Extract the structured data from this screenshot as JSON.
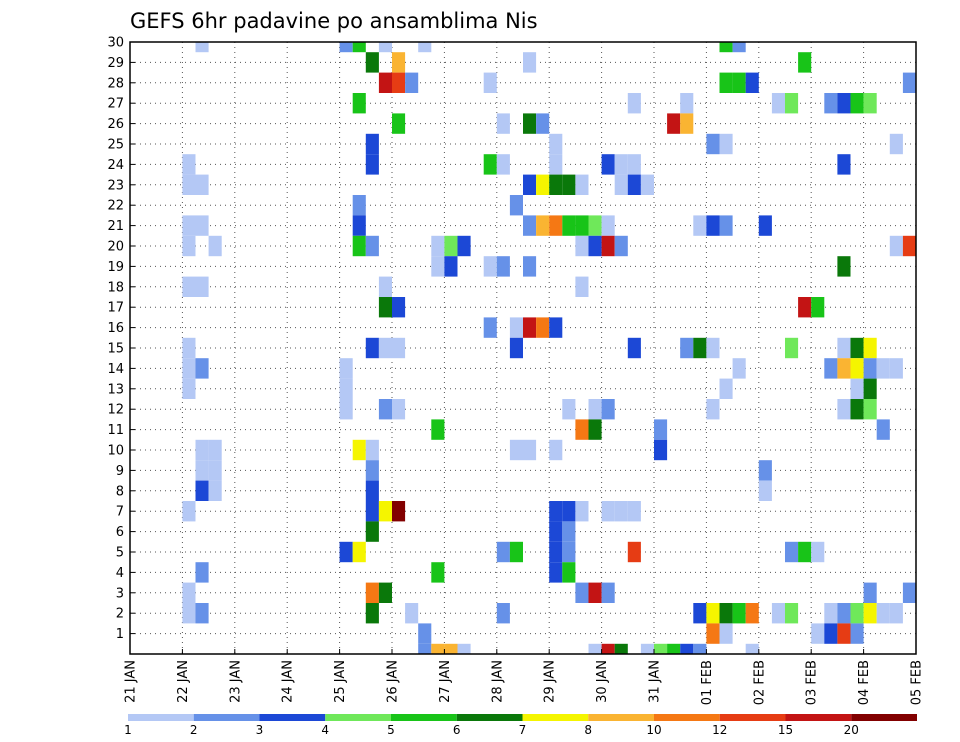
{
  "chart_data": {
    "type": "heatmap",
    "title": "GEFS 6hr padavine po ansamblima Nis",
    "xlabel": "",
    "ylabel": "",
    "x_ticks": [
      "21 JAN",
      "22 JAN",
      "23 JAN",
      "24 JAN",
      "25 JAN",
      "26 JAN",
      "27 JAN",
      "28 JAN",
      "29 JAN",
      "30 JAN",
      "31 JAN",
      "01 FEB",
      "02 FEB",
      "03 FEB",
      "04 FEB",
      "05 FEB"
    ],
    "y_ticks": [
      "1",
      "2",
      "3",
      "4",
      "5",
      "6",
      "7",
      "8",
      "9",
      "10",
      "11",
      "12",
      "13",
      "14",
      "15",
      "16",
      "17",
      "18",
      "19",
      "20",
      "21",
      "22",
      "23",
      "24",
      "25",
      "26",
      "27",
      "28",
      "29",
      "30"
    ],
    "x_range_steps": [
      0,
      60
    ],
    "y_range": [
      0,
      30
    ],
    "steps_per_day": 4,
    "colorbar": {
      "labels": [
        "1",
        "2",
        "3",
        "4",
        "5",
        "6",
        "7",
        "8",
        "10",
        "12",
        "15",
        "20"
      ],
      "colors": [
        "#b4c8f5",
        "#6691e8",
        "#1c48d6",
        "#6fe85a",
        "#18c418",
        "#0a780a",
        "#f5f500",
        "#fab432",
        "#f57814",
        "#e63c14",
        "#c31414",
        "#820000"
      ]
    },
    "cells": [
      [
        5,
        30,
        0
      ],
      [
        16,
        30,
        1
      ],
      [
        17,
        30,
        4
      ],
      [
        19,
        30,
        0
      ],
      [
        22,
        30,
        0
      ],
      [
        45,
        30,
        4
      ],
      [
        46,
        30,
        1
      ],
      [
        18,
        29,
        5
      ],
      [
        20,
        29,
        7
      ],
      [
        30,
        29,
        0
      ],
      [
        51,
        29,
        4
      ],
      [
        19,
        28,
        10
      ],
      [
        20,
        28,
        9
      ],
      [
        21,
        28,
        1
      ],
      [
        27,
        28,
        0
      ],
      [
        45,
        28,
        4
      ],
      [
        46,
        28,
        4
      ],
      [
        47,
        28,
        2
      ],
      [
        59,
        28,
        1
      ],
      [
        17,
        27,
        4
      ],
      [
        38,
        27,
        0
      ],
      [
        42,
        27,
        0
      ],
      [
        49,
        27,
        0
      ],
      [
        50,
        27,
        3
      ],
      [
        53,
        27,
        1
      ],
      [
        54,
        27,
        2
      ],
      [
        55,
        27,
        4
      ],
      [
        56,
        27,
        3
      ],
      [
        20,
        26,
        4
      ],
      [
        28,
        26,
        0
      ],
      [
        30,
        26,
        5
      ],
      [
        31,
        26,
        1
      ],
      [
        41,
        26,
        10
      ],
      [
        42,
        26,
        7
      ],
      [
        18,
        25,
        2
      ],
      [
        32,
        25,
        0
      ],
      [
        44,
        25,
        1
      ],
      [
        45,
        25,
        0
      ],
      [
        58,
        25,
        0
      ],
      [
        4,
        24,
        0
      ],
      [
        18,
        24,
        2
      ],
      [
        27,
        24,
        4
      ],
      [
        28,
        24,
        0
      ],
      [
        32,
        24,
        0
      ],
      [
        36,
        24,
        2
      ],
      [
        37,
        24,
        0
      ],
      [
        38,
        24,
        0
      ],
      [
        54,
        24,
        2
      ],
      [
        4,
        23,
        0
      ],
      [
        5,
        23,
        0
      ],
      [
        30,
        23,
        2
      ],
      [
        31,
        23,
        6
      ],
      [
        32,
        23,
        5
      ],
      [
        33,
        23,
        5
      ],
      [
        34,
        23,
        0
      ],
      [
        37,
        23,
        0
      ],
      [
        38,
        23,
        2
      ],
      [
        39,
        23,
        0
      ],
      [
        17,
        22,
        1
      ],
      [
        29,
        22,
        1
      ],
      [
        4,
        21,
        0
      ],
      [
        5,
        21,
        0
      ],
      [
        17,
        21,
        2
      ],
      [
        30,
        21,
        1
      ],
      [
        31,
        21,
        7
      ],
      [
        32,
        21,
        8
      ],
      [
        33,
        21,
        4
      ],
      [
        34,
        21,
        4
      ],
      [
        35,
        21,
        3
      ],
      [
        36,
        21,
        0
      ],
      [
        43,
        21,
        0
      ],
      [
        44,
        21,
        2
      ],
      [
        45,
        21,
        1
      ],
      [
        48,
        21,
        2
      ],
      [
        4,
        20,
        0
      ],
      [
        6,
        20,
        0
      ],
      [
        17,
        20,
        4
      ],
      [
        18,
        20,
        1
      ],
      [
        23,
        20,
        0
      ],
      [
        24,
        20,
        3
      ],
      [
        25,
        20,
        2
      ],
      [
        34,
        20,
        0
      ],
      [
        35,
        20,
        2
      ],
      [
        36,
        20,
        10
      ],
      [
        37,
        20,
        1
      ],
      [
        58,
        20,
        0
      ],
      [
        59,
        20,
        9
      ],
      [
        23,
        19,
        0
      ],
      [
        24,
        19,
        2
      ],
      [
        27,
        19,
        0
      ],
      [
        28,
        19,
        1
      ],
      [
        30,
        19,
        1
      ],
      [
        54,
        19,
        5
      ],
      [
        4,
        18,
        0
      ],
      [
        5,
        18,
        0
      ],
      [
        19,
        18,
        0
      ],
      [
        34,
        18,
        0
      ],
      [
        19,
        17,
        5
      ],
      [
        20,
        17,
        2
      ],
      [
        51,
        17,
        10
      ],
      [
        52,
        17,
        4
      ],
      [
        27,
        16,
        1
      ],
      [
        29,
        16,
        0
      ],
      [
        30,
        16,
        10
      ],
      [
        31,
        16,
        8
      ],
      [
        32,
        16,
        2
      ],
      [
        18,
        15,
        2
      ],
      [
        4,
        15,
        0
      ],
      [
        19,
        15,
        0
      ],
      [
        20,
        15,
        0
      ],
      [
        29,
        15,
        2
      ],
      [
        38,
        15,
        2
      ],
      [
        42,
        15,
        1
      ],
      [
        43,
        15,
        5
      ],
      [
        44,
        15,
        0
      ],
      [
        50,
        15,
        3
      ],
      [
        54,
        15,
        0
      ],
      [
        55,
        15,
        5
      ],
      [
        56,
        15,
        6
      ],
      [
        4,
        14,
        0
      ],
      [
        5,
        14,
        1
      ],
      [
        16,
        14,
        0
      ],
      [
        46,
        14,
        0
      ],
      [
        53,
        14,
        1
      ],
      [
        54,
        14,
        7
      ],
      [
        55,
        14,
        6
      ],
      [
        56,
        14,
        1
      ],
      [
        57,
        14,
        0
      ],
      [
        58,
        14,
        0
      ],
      [
        4,
        13,
        0
      ],
      [
        16,
        13,
        0
      ],
      [
        45,
        13,
        0
      ],
      [
        55,
        13,
        0
      ],
      [
        56,
        13,
        5
      ],
      [
        16,
        12,
        0
      ],
      [
        19,
        12,
        1
      ],
      [
        20,
        12,
        0
      ],
      [
        33,
        12,
        0
      ],
      [
        35,
        12,
        0
      ],
      [
        36,
        12,
        1
      ],
      [
        44,
        12,
        0
      ],
      [
        54,
        12,
        0
      ],
      [
        55,
        12,
        5
      ],
      [
        56,
        12,
        3
      ],
      [
        23,
        11,
        4
      ],
      [
        34,
        11,
        8
      ],
      [
        35,
        11,
        5
      ],
      [
        40,
        11,
        1
      ],
      [
        57,
        11,
        1
      ],
      [
        5,
        10,
        0
      ],
      [
        6,
        10,
        0
      ],
      [
        17,
        10,
        6
      ],
      [
        18,
        10,
        0
      ],
      [
        29,
        10,
        0
      ],
      [
        30,
        10,
        0
      ],
      [
        32,
        10,
        0
      ],
      [
        40,
        10,
        2
      ],
      [
        5,
        9,
        0
      ],
      [
        6,
        9,
        0
      ],
      [
        18,
        9,
        1
      ],
      [
        48,
        9,
        1
      ],
      [
        5,
        8,
        2
      ],
      [
        6,
        8,
        0
      ],
      [
        18,
        8,
        2
      ],
      [
        48,
        8,
        0
      ],
      [
        4,
        7,
        0
      ],
      [
        18,
        7,
        2
      ],
      [
        19,
        7,
        6
      ],
      [
        20,
        7,
        11
      ],
      [
        32,
        7,
        2
      ],
      [
        33,
        7,
        2
      ],
      [
        34,
        7,
        0
      ],
      [
        36,
        7,
        0
      ],
      [
        37,
        7,
        0
      ],
      [
        38,
        7,
        0
      ],
      [
        18,
        6,
        5
      ],
      [
        32,
        6,
        2
      ],
      [
        33,
        6,
        1
      ],
      [
        16,
        5,
        2
      ],
      [
        17,
        5,
        6
      ],
      [
        28,
        5,
        1
      ],
      [
        29,
        5,
        4
      ],
      [
        32,
        5,
        2
      ],
      [
        33,
        5,
        1
      ],
      [
        38,
        5,
        9
      ],
      [
        50,
        5,
        1
      ],
      [
        51,
        5,
        4
      ],
      [
        52,
        5,
        0
      ],
      [
        5,
        4,
        1
      ],
      [
        23,
        4,
        4
      ],
      [
        32,
        4,
        2
      ],
      [
        33,
        4,
        4
      ],
      [
        4,
        3,
        0
      ],
      [
        18,
        3,
        8
      ],
      [
        19,
        3,
        5
      ],
      [
        34,
        3,
        1
      ],
      [
        35,
        3,
        10
      ],
      [
        36,
        3,
        1
      ],
      [
        56,
        3,
        1
      ],
      [
        59,
        3,
        1
      ],
      [
        4,
        2,
        0
      ],
      [
        5,
        2,
        1
      ],
      [
        18,
        2,
        5
      ],
      [
        21,
        2,
        0
      ],
      [
        28,
        2,
        1
      ],
      [
        43,
        2,
        2
      ],
      [
        44,
        2,
        6
      ],
      [
        45,
        2,
        5
      ],
      [
        46,
        2,
        4
      ],
      [
        47,
        2,
        8
      ],
      [
        49,
        2,
        0
      ],
      [
        50,
        2,
        3
      ],
      [
        53,
        2,
        0
      ],
      [
        54,
        2,
        1
      ],
      [
        55,
        2,
        3
      ],
      [
        56,
        2,
        6
      ],
      [
        57,
        2,
        0
      ],
      [
        58,
        2,
        0
      ],
      [
        22,
        1,
        1
      ],
      [
        44,
        1,
        8
      ],
      [
        45,
        1,
        0
      ],
      [
        52,
        1,
        0
      ],
      [
        53,
        1,
        2
      ],
      [
        54,
        1,
        9
      ],
      [
        55,
        1,
        1
      ],
      [
        22,
        0,
        1
      ],
      [
        23,
        0,
        7
      ],
      [
        24,
        0,
        7
      ],
      [
        25,
        0,
        0
      ],
      [
        35,
        0,
        0
      ],
      [
        36,
        0,
        10
      ],
      [
        37,
        0,
        5
      ],
      [
        39,
        0,
        0
      ],
      [
        40,
        0,
        3
      ],
      [
        41,
        0,
        4
      ],
      [
        42,
        0,
        2
      ],
      [
        43,
        0,
        1
      ],
      [
        47,
        0,
        0
      ],
      [
        19,
        -1,
        2
      ],
      [
        4,
        -1,
        0
      ],
      [
        36,
        -1,
        0
      ],
      [
        47,
        -1,
        0
      ],
      [
        48,
        -1,
        1
      ],
      [
        49,
        -1,
        4
      ],
      [
        19,
        -2,
        3
      ],
      [
        20,
        -2,
        0
      ],
      [
        30,
        -2,
        2
      ],
      [
        31,
        -2,
        8
      ],
      [
        32,
        -2,
        8
      ],
      [
        33,
        -2,
        7
      ],
      [
        56,
        -2,
        2
      ],
      [
        57,
        -2,
        0
      ],
      [
        58,
        -2,
        0
      ]
    ]
  }
}
